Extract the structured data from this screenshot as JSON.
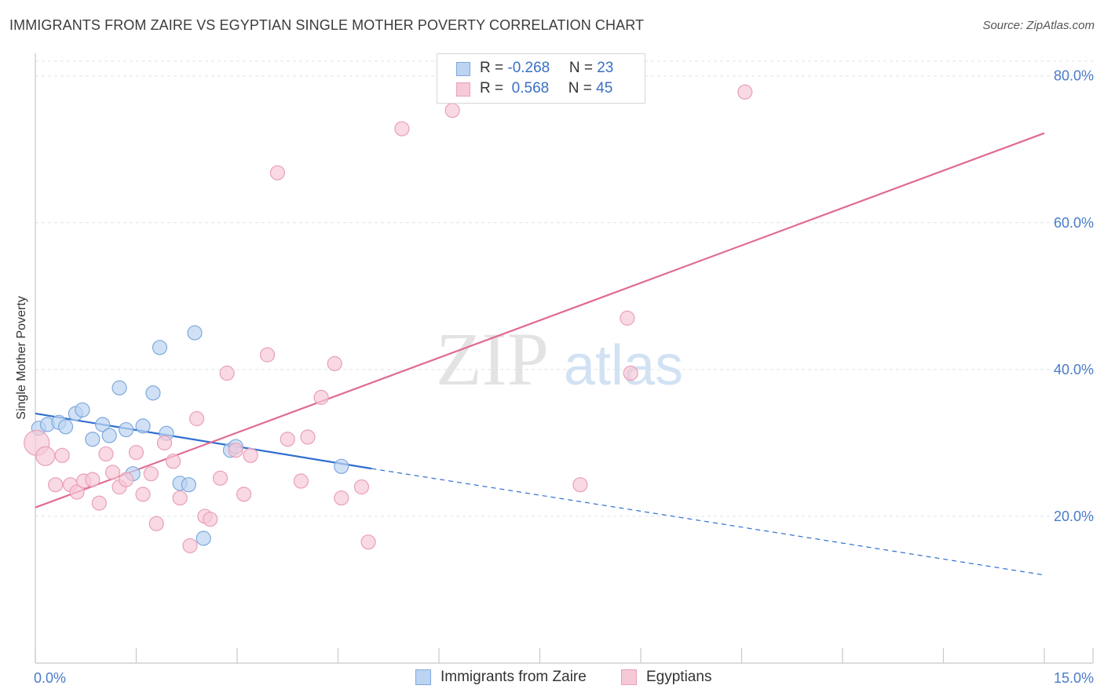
{
  "header": {
    "title": "IMMIGRANTS FROM ZAIRE VS EGYPTIAN SINGLE MOTHER POVERTY CORRELATION CHART",
    "source": "Source: ZipAtlas.com"
  },
  "watermark": {
    "zip": "ZIP",
    "atlas": "atlas"
  },
  "legend_top": {
    "rows": [
      {
        "r_label": "R = ",
        "r_value": "-0.268",
        "n_label": "N = ",
        "n_value": "23"
      },
      {
        "r_label": "R = ",
        "r_value": " 0.568",
        "n_label": "N = ",
        "n_value": "45"
      }
    ]
  },
  "legend_bottom": {
    "items": [
      {
        "label": "Immigrants from Zaire"
      },
      {
        "label": "Egyptians"
      }
    ]
  },
  "colors": {
    "blue_fill": "#bcd4f2",
    "blue_stroke": "#7fa8de",
    "blue_line": "#2f6fcf",
    "pink_fill": "#f6c9d7",
    "pink_stroke": "#e9a0b8",
    "pink_line": "#e06a93",
    "grid": "#dde3ea",
    "axis": "#c8c8c8",
    "tick_text": "#4a7cc9"
  },
  "chart_data": {
    "type": "scatter",
    "title": "IMMIGRANTS FROM ZAIRE VS EGYPTIAN SINGLE MOTHER POVERTY CORRELATION CHART",
    "xlabel": "",
    "ylabel": "Single Mother Poverty",
    "xlim": [
      0,
      15
    ],
    "ylim": [
      0,
      82
    ],
    "x_tick_labels": [
      {
        "value": 0,
        "label": "0.0%"
      },
      {
        "value": 15,
        "label": "15.0%"
      }
    ],
    "y_tick_labels": [
      {
        "value": 20,
        "label": "20.0%"
      },
      {
        "value": 40,
        "label": "40.0%"
      },
      {
        "value": 60,
        "label": "60.0%"
      },
      {
        "value": 80,
        "label": "80.0%"
      }
    ],
    "series": [
      {
        "name": "Immigrants from Zaire",
        "color": "blue",
        "points": [
          [
            0.05,
            32.0
          ],
          [
            0.18,
            32.5
          ],
          [
            0.35,
            32.8
          ],
          [
            0.45,
            32.2
          ],
          [
            0.6,
            34.0
          ],
          [
            0.7,
            34.5
          ],
          [
            0.85,
            30.5
          ],
          [
            1.0,
            32.5
          ],
          [
            1.1,
            31.0
          ],
          [
            1.25,
            37.5
          ],
          [
            1.35,
            31.8
          ],
          [
            1.45,
            25.8
          ],
          [
            1.6,
            32.3
          ],
          [
            1.75,
            36.8
          ],
          [
            1.85,
            43.0
          ],
          [
            1.95,
            31.3
          ],
          [
            2.15,
            24.5
          ],
          [
            2.28,
            24.3
          ],
          [
            2.37,
            45.0
          ],
          [
            2.5,
            17.0
          ],
          [
            2.9,
            29.0
          ],
          [
            2.98,
            29.5
          ],
          [
            4.55,
            26.8
          ]
        ],
        "trend": {
          "x0": 0,
          "y0": 34.0,
          "x1": 5.0,
          "y1": 26.5,
          "dash_to_x": 15,
          "dash_to_y": 12.0
        }
      },
      {
        "name": "Egyptians",
        "color": "pink",
        "points": [
          [
            0.02,
            30.0
          ],
          [
            0.15,
            28.2
          ],
          [
            0.3,
            24.3
          ],
          [
            0.4,
            28.3
          ],
          [
            0.52,
            24.3
          ],
          [
            0.62,
            23.3
          ],
          [
            0.72,
            24.8
          ],
          [
            0.85,
            25.0
          ],
          [
            0.95,
            21.8
          ],
          [
            1.05,
            28.5
          ],
          [
            1.15,
            26.0
          ],
          [
            1.25,
            24.0
          ],
          [
            1.35,
            25.0
          ],
          [
            1.5,
            28.7
          ],
          [
            1.6,
            23.0
          ],
          [
            1.72,
            25.8
          ],
          [
            1.8,
            19.0
          ],
          [
            1.92,
            30.0
          ],
          [
            2.05,
            27.5
          ],
          [
            2.15,
            22.5
          ],
          [
            2.4,
            33.3
          ],
          [
            2.52,
            20.0
          ],
          [
            2.6,
            19.6
          ],
          [
            2.75,
            25.2
          ],
          [
            2.85,
            39.5
          ],
          [
            2.98,
            29.0
          ],
          [
            3.1,
            23.0
          ],
          [
            3.2,
            28.3
          ],
          [
            3.45,
            42.0
          ],
          [
            3.6,
            66.8
          ],
          [
            3.75,
            30.5
          ],
          [
            3.95,
            24.8
          ],
          [
            4.05,
            30.8
          ],
          [
            4.25,
            36.2
          ],
          [
            4.45,
            40.8
          ],
          [
            4.55,
            22.5
          ],
          [
            4.85,
            24.0
          ],
          [
            4.95,
            16.5
          ],
          [
            5.45,
            72.8
          ],
          [
            6.2,
            75.3
          ],
          [
            8.1,
            24.3
          ],
          [
            8.8,
            47.0
          ],
          [
            8.85,
            39.5
          ],
          [
            10.55,
            77.8
          ],
          [
            2.3,
            16.0
          ]
        ],
        "trend": {
          "x0": 0,
          "y0": 21.2,
          "x1": 15,
          "y1": 72.2
        }
      }
    ]
  }
}
